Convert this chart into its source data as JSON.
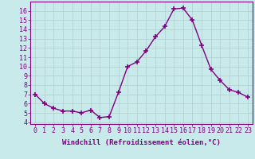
{
  "x": [
    0,
    1,
    2,
    3,
    4,
    5,
    6,
    7,
    8,
    9,
    10,
    11,
    12,
    13,
    14,
    15,
    16,
    17,
    18,
    19,
    20,
    21,
    22,
    23
  ],
  "y": [
    7.0,
    6.0,
    5.5,
    5.2,
    5.2,
    5.0,
    5.3,
    4.5,
    4.6,
    7.2,
    10.0,
    10.5,
    11.7,
    13.2,
    14.3,
    16.2,
    16.3,
    15.0,
    12.3,
    9.7,
    8.5,
    7.5,
    7.2,
    6.7
  ],
  "line_color": "#800080",
  "marker": "+",
  "marker_size": 4,
  "marker_linewidth": 1.2,
  "bg_color": "#c8eaea",
  "grid_color": "#b0cece",
  "xlabel": "Windchill (Refroidissement éolien,°C)",
  "ylabel_ticks": [
    4,
    5,
    6,
    7,
    8,
    9,
    10,
    11,
    12,
    13,
    14,
    15,
    16
  ],
  "xlim": [
    -0.5,
    23.5
  ],
  "ylim": [
    3.8,
    17.0
  ],
  "xlabel_fontsize": 6.5,
  "tick_fontsize": 6.0,
  "xlabel_color": "#800080",
  "tick_color": "#800080",
  "spine_color": "#800080",
  "line_width": 1.0
}
